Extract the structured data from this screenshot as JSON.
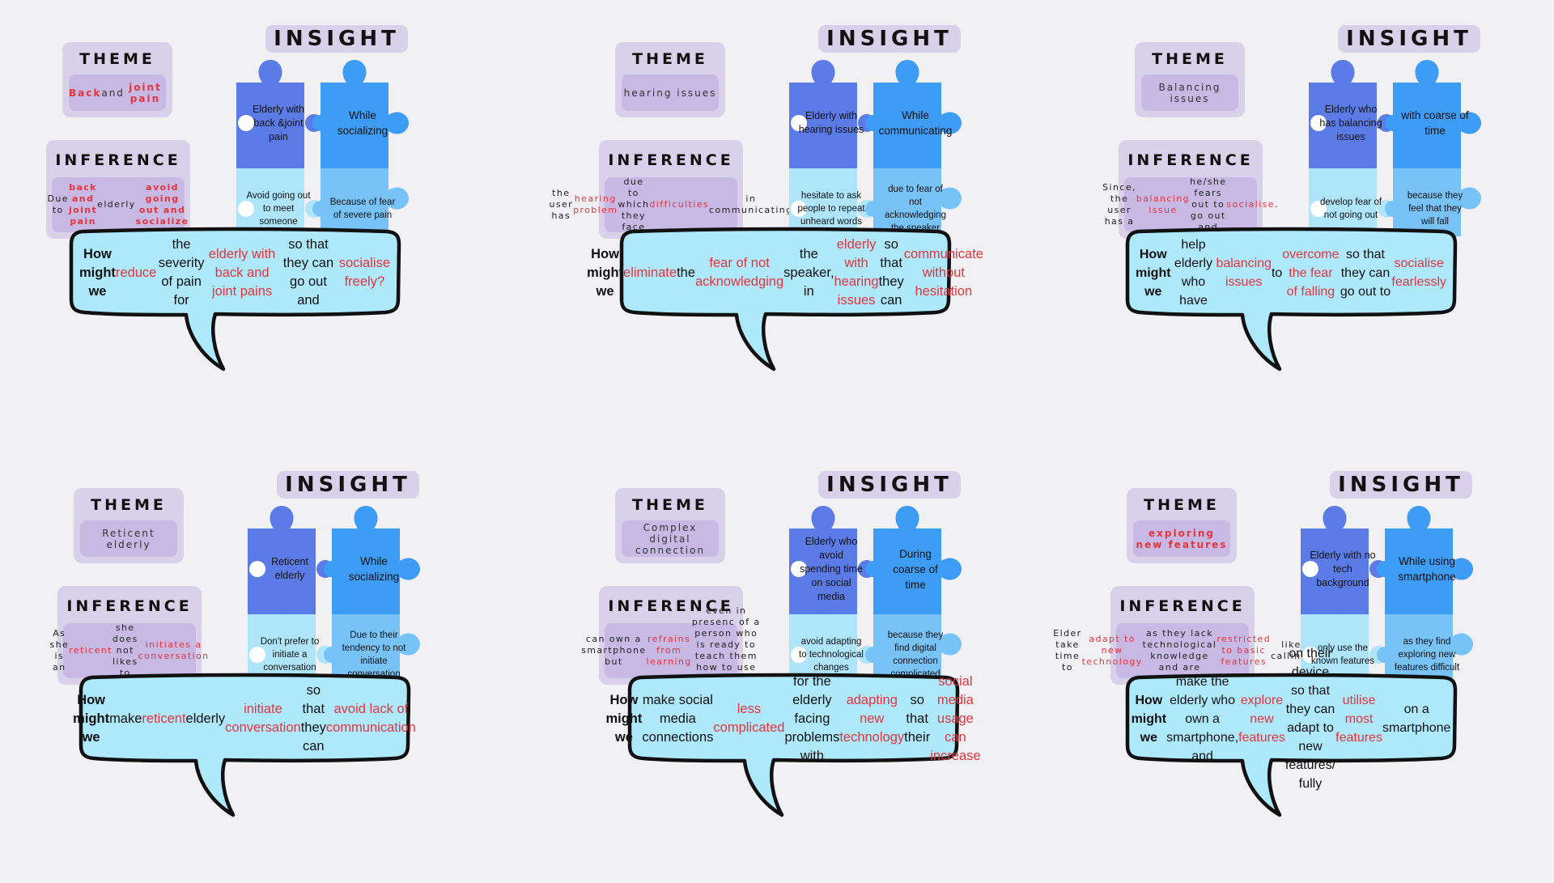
{
  "panels": [
    {
      "theme_label": "THEME",
      "theme": [
        {
          "t": "Back",
          "c": "bred"
        },
        {
          "t": " and ",
          "c": ""
        },
        {
          "t": "joint pain",
          "c": "bred"
        }
      ],
      "inference_label": "INFERENCE",
      "inference": [
        {
          "t": "Due to ",
          "c": ""
        },
        {
          "t": "back and joint pain",
          "c": "bred"
        },
        {
          "t": " elderly ",
          "c": ""
        },
        {
          "t": "avoid going out and socialize",
          "c": "bred"
        }
      ],
      "insight_label": "INSIGHT",
      "pieces": [
        "Elderly with back &joint pain",
        "While socializing",
        "Avoid going out to meet someone",
        "Because of fear of severe pain"
      ],
      "hmw": [
        {
          "t": "How might we",
          "c": "b"
        },
        {
          "t": " ",
          "c": ""
        },
        {
          "t": "reduce",
          "c": "red"
        },
        {
          "t": " the severity of pain for ",
          "c": ""
        },
        {
          "t": "elderly with back and joint pains",
          "c": "red"
        },
        {
          "t": " so that they can go out and ",
          "c": ""
        },
        {
          "t": "socialise freely?",
          "c": "red"
        }
      ]
    },
    {
      "theme_label": "THEME",
      "theme": [
        {
          "t": "hearing issues",
          "c": ""
        }
      ],
      "inference_label": "INFERENCE",
      "inference": [
        {
          "t": "the user has ",
          "c": ""
        },
        {
          "t": "hearing problem",
          "c": "red"
        },
        {
          "t": " due to which they face ",
          "c": ""
        },
        {
          "t": "difficulties",
          "c": "red"
        },
        {
          "t": " in communicating",
          "c": ""
        }
      ],
      "insight_label": "INSIGHT",
      "pieces": [
        "Elderly with hearing issues",
        "While communicating",
        "hesitate to ask people to repeat unheard words",
        "due to fear of not acknowledging the speaker"
      ],
      "hmw": [
        {
          "t": "How might we",
          "c": "b"
        },
        {
          "t": " ",
          "c": ""
        },
        {
          "t": "eliminate",
          "c": "red"
        },
        {
          "t": " the ",
          "c": ""
        },
        {
          "t": "fear of not acknowledging",
          "c": "red"
        },
        {
          "t": " the speaker, in ",
          "c": ""
        },
        {
          "t": "elderly with hearing issues",
          "c": "red"
        },
        {
          "t": " so that they can ",
          "c": ""
        },
        {
          "t": "communicate without hesitation",
          "c": "red"
        }
      ]
    },
    {
      "theme_label": "THEME",
      "theme": [
        {
          "t": "Balancing issues",
          "c": ""
        }
      ],
      "inference_label": "INFERENCE",
      "inference": [
        {
          "t": "Since, the user has a ",
          "c": ""
        },
        {
          "t": "balancing issue",
          "c": "red"
        },
        {
          "t": " he/she fears out to go out and ",
          "c": ""
        },
        {
          "t": "socialise",
          "c": "red"
        },
        {
          "t": ".",
          "c": ""
        }
      ],
      "insight_label": "INSIGHT",
      "pieces": [
        "Elderly who has balancing issues",
        "with coarse of time",
        "develop fear of not going out",
        "because they feel that they will fall"
      ],
      "hmw": [
        {
          "t": "How might we",
          "c": "b"
        },
        {
          "t": " help elderly who have ",
          "c": ""
        },
        {
          "t": "balancing issues",
          "c": "red"
        },
        {
          "t": " to ",
          "c": ""
        },
        {
          "t": "overcome the fear of falling",
          "c": "red"
        },
        {
          "t": " so that they can go out to ",
          "c": ""
        },
        {
          "t": "socialise fearlessly",
          "c": "red"
        }
      ]
    },
    {
      "theme_label": "THEME",
      "theme": [
        {
          "t": "Reticent elderly",
          "c": ""
        }
      ],
      "inference_label": "INFERENCE",
      "inference": [
        {
          "t": "As she is an ",
          "c": ""
        },
        {
          "t": "reticent",
          "c": "red"
        },
        {
          "t": " she does not likes to ",
          "c": ""
        },
        {
          "t": "initiates a conversation",
          "c": "red"
        }
      ],
      "insight_label": "INSIGHT",
      "pieces": [
        "Reticent elderly",
        "While socializing",
        "Don't prefer to initiate a conversation",
        "Due to their tendency to not initiate conversation"
      ],
      "hmw": [
        {
          "t": "How might we",
          "c": "b"
        },
        {
          "t": " make ",
          "c": ""
        },
        {
          "t": "reticent",
          "c": "red"
        },
        {
          "t": " elderly ",
          "c": ""
        },
        {
          "t": "initiate conversation",
          "c": "red"
        },
        {
          "t": " so that they can ",
          "c": ""
        },
        {
          "t": "avoid lack of communication",
          "c": "red"
        }
      ]
    },
    {
      "theme_label": "THEME",
      "theme": [
        {
          "t": "Complex digital connection",
          "c": ""
        }
      ],
      "inference_label": "INFERENCE",
      "inference": [
        {
          "t": "can own a smartphone but ",
          "c": ""
        },
        {
          "t": "refrains from learning",
          "c": "red"
        },
        {
          "t": " even in presenc of a person who is ready to teach them how to use a smartphone.",
          "c": ""
        }
      ],
      "insight_label": "INSIGHT",
      "pieces": [
        "Elderly who avoid spending time on social media",
        "During coarse of time",
        "avoid adapting to technological changes",
        "because they find digital connection complicated"
      ],
      "hmw": [
        {
          "t": "How might we",
          "c": "b"
        },
        {
          "t": " make social media connections ",
          "c": ""
        },
        {
          "t": "less complicated",
          "c": "red"
        },
        {
          "t": " for the elderly facing problems with ",
          "c": ""
        },
        {
          "t": "adapting new technology",
          "c": "red"
        },
        {
          "t": " so that their ",
          "c": ""
        },
        {
          "t": "social media usage can increase",
          "c": "red"
        }
      ]
    },
    {
      "theme_label": "THEME",
      "theme": [
        {
          "t": "exploring new features",
          "c": "bred"
        }
      ],
      "inference_label": "INFERENCE",
      "inference": [
        {
          "t": "Elder take time to ",
          "c": ""
        },
        {
          "t": "adapt to new technology",
          "c": "red"
        },
        {
          "t": " as they lack technological knowledge and are ",
          "c": ""
        },
        {
          "t": "restricted to basic features",
          "c": "red"
        },
        {
          "t": " like calling.",
          "c": ""
        }
      ],
      "insight_label": "INSIGHT",
      "pieces": [
        "Elderly with no tech background",
        "While using smartphone",
        "only use the known features",
        "as they find exploring new features difficult"
      ],
      "hmw": [
        {
          "t": "How might we",
          "c": "b"
        },
        {
          "t": " make the elderly who own a smartphone, and ",
          "c": ""
        },
        {
          "t": "explore new features",
          "c": "red"
        },
        {
          "t": " on their device so that they can adapt to new features/ fully ",
          "c": ""
        },
        {
          "t": "utilise most features",
          "c": "red"
        },
        {
          "t": " on a smartphone",
          "c": ""
        }
      ]
    }
  ],
  "colors": {
    "piece_top_left": "#5b7be6",
    "piece_top_right": "#3d9cf5",
    "piece_bottom_left": "#aee5fb",
    "piece_bottom_right": "#77c2f7",
    "bubble_fill": "#aee9fb",
    "card_outer": "#d9d0e9",
    "card_inner": "#c7b9e3",
    "accent_red": "#e5343d"
  }
}
